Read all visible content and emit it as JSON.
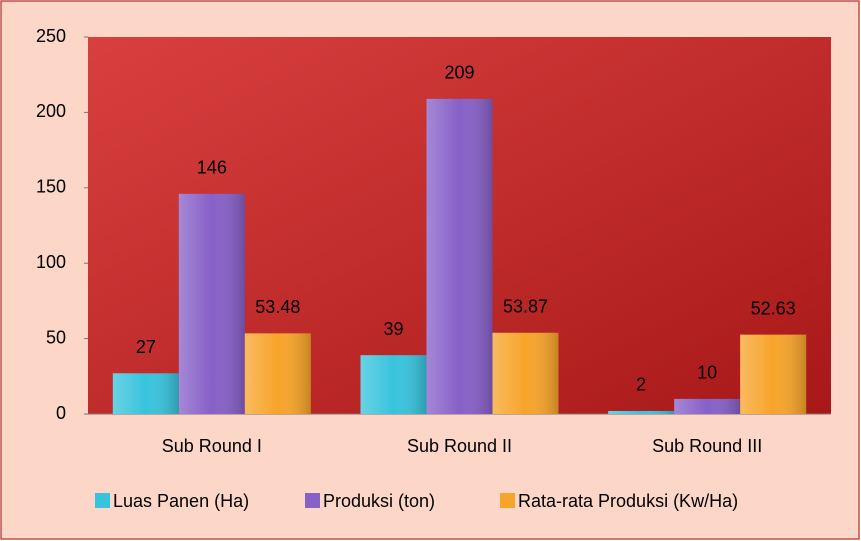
{
  "chart_data": {
    "type": "bar",
    "categories": [
      "Sub Round I",
      "Sub Round II",
      "Sub Round III"
    ],
    "series": [
      {
        "name": "Luas Panen (Ha)",
        "color": "#38c3dd",
        "values": [
          27,
          39,
          2
        ]
      },
      {
        "name": "Produksi (ton)",
        "color": "#8760c8",
        "values": [
          146,
          209,
          10
        ]
      },
      {
        "name": "Rata-rata Produksi (Kw/Ha)",
        "color": "#f7a42a",
        "values": [
          53.48,
          53.87,
          52.63
        ]
      }
    ],
    "ylim": [
      0,
      250
    ],
    "yticks": [
      0,
      50,
      100,
      150,
      200,
      250
    ],
    "legend": "bottom"
  }
}
